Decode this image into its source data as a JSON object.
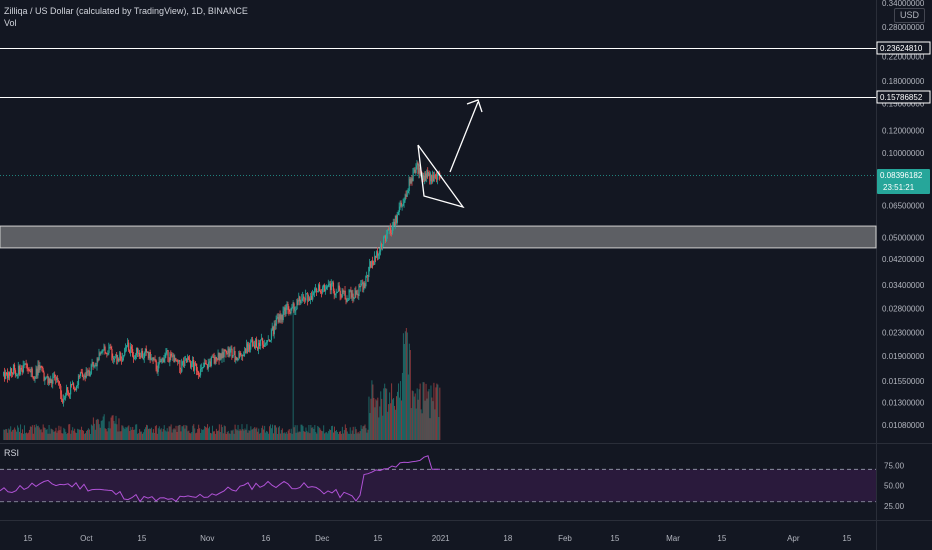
{
  "header": {
    "symbol_line": "Zilliqa / US Dollar (calculated by TradingView), 1D, BINANCE",
    "vol_label": "Vol"
  },
  "currency_label": "USD",
  "rsi_label": "RSI",
  "colors": {
    "background": "#131722",
    "up": "#26a69a",
    "down": "#ef5350",
    "rsi_line": "#b052d6",
    "rsi_band": "#2a1a3c",
    "zone": "#9a9a9a",
    "text": "#b2b5be",
    "drawing": "#ffffff"
  },
  "chart_data": {
    "type": "candlestick",
    "title": "Zilliqa / US Dollar (calculated by TradingView), 1D, BINANCE",
    "price_axis_labels": [
      "0.34000000",
      "0.28000000",
      "0.22000000",
      "0.18000000",
      "0.15000000",
      "0.12000000",
      "0.10000000",
      "0.06500000",
      "0.05000000",
      "0.04200000",
      "0.03400000",
      "0.02800000",
      "0.02300000",
      "0.01900000",
      "0.01550000",
      "0.01300000",
      "0.01080000"
    ],
    "time_axis_labels": [
      "15",
      "Oct",
      "15",
      "Nov",
      "16",
      "Dec",
      "15",
      "2021",
      "18",
      "Feb",
      "15",
      "Mar",
      "15",
      "Apr",
      "15"
    ],
    "rsi_axis_labels": [
      "75.00",
      "50.00",
      "25.00"
    ],
    "horizontal_levels": [
      {
        "price": 0.2362481,
        "label": "0.23624810"
      },
      {
        "price": 0.15786852,
        "label": "0.15786852"
      }
    ],
    "current_price": {
      "label": "0.08396182",
      "countdown": "23:51:21"
    },
    "support_zone": {
      "from": 0.046,
      "to": 0.055
    },
    "close_path": [
      [
        0.0162,
        0.0162
      ],
      [
        0.0172,
        0.0172
      ],
      [
        0.0168,
        0.0168
      ],
      [
        0.0175,
        0.0175
      ],
      [
        0.0165,
        0.0165
      ],
      [
        0.017,
        0.017
      ],
      [
        0.016,
        0.016
      ],
      [
        0.0155,
        0.0155
      ],
      [
        0.016,
        0.016
      ],
      [
        0.0138,
        0.0138
      ],
      [
        0.0145,
        0.0145
      ],
      [
        0.015,
        0.015
      ],
      [
        0.0158,
        0.0158
      ],
      [
        0.0165,
        0.0165
      ],
      [
        0.017,
        0.017
      ],
      [
        0.018,
        0.018
      ],
      [
        0.0192,
        0.0192
      ],
      [
        0.0198,
        0.0198
      ],
      [
        0.0185,
        0.0185
      ],
      [
        0.019,
        0.019
      ],
      [
        0.0202,
        0.0202
      ],
      [
        0.0196,
        0.0196
      ],
      [
        0.02,
        0.02
      ],
      [
        0.019,
        0.019
      ],
      [
        0.0188,
        0.0188
      ],
      [
        0.0175,
        0.0175
      ],
      [
        0.018,
        0.018
      ],
      [
        0.0195,
        0.0195
      ],
      [
        0.0185,
        0.0185
      ],
      [
        0.0178,
        0.0178
      ],
      [
        0.0182,
        0.0182
      ],
      [
        0.0175,
        0.0175
      ],
      [
        0.017,
        0.017
      ],
      [
        0.0168,
        0.0168
      ],
      [
        0.0175,
        0.0175
      ],
      [
        0.0185,
        0.0185
      ],
      [
        0.019,
        0.019
      ],
      [
        0.02,
        0.02
      ],
      [
        0.0195,
        0.0195
      ],
      [
        0.019,
        0.019
      ],
      [
        0.0198,
        0.0198
      ],
      [
        0.0205,
        0.0205
      ],
      [
        0.021,
        0.021
      ],
      [
        0.0215,
        0.0215
      ],
      [
        0.0225,
        0.0225
      ],
      [
        0.024,
        0.024
      ],
      [
        0.026,
        0.026
      ],
      [
        0.028,
        0.028
      ],
      [
        0.0275,
        0.0275
      ],
      [
        0.029,
        0.029
      ],
      [
        0.03,
        0.03
      ],
      [
        0.031,
        0.031
      ],
      [
        0.032,
        0.032
      ],
      [
        0.033,
        0.033
      ],
      [
        0.0345,
        0.0345
      ],
      [
        0.0335,
        0.0335
      ],
      [
        0.033,
        0.033
      ],
      [
        0.031,
        0.031
      ],
      [
        0.0318,
        0.0318
      ],
      [
        0.0325,
        0.0325
      ],
      [
        0.034,
        0.034
      ],
      [
        0.038,
        0.038
      ],
      [
        0.042,
        0.042
      ],
      [
        0.046,
        0.046
      ],
      [
        0.05,
        0.05
      ],
      [
        0.054,
        0.054
      ],
      [
        0.06,
        0.06
      ],
      [
        0.07,
        0.07
      ],
      [
        0.08,
        0.08
      ],
      [
        0.088,
        0.088
      ],
      [
        0.082,
        0.082
      ],
      [
        0.086,
        0.086
      ],
      [
        0.08,
        0.08
      ],
      [
        0.084,
        0.084
      ]
    ]
  }
}
